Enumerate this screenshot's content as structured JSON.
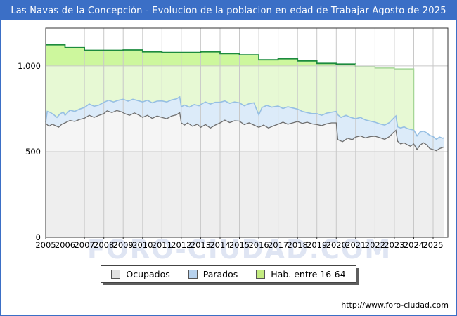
{
  "frame": {
    "title": "Las Navas de la Concepción - Evolucion de la poblacion en edad de Trabajar Agosto de 2025",
    "watermark": "FORO-CIUDAD.COM",
    "footer_url": "http://www.foro-ciudad.com"
  },
  "colors": {
    "accent_blue": "#3b6fc6",
    "plot_border": "#333333",
    "grid": "#c8c8c8",
    "tick": "#333333",
    "axis_text": "#000000",
    "ocupados_line": "#6f6f6f",
    "ocupados_fill_upper": "#f5f5f5",
    "ocupados_fill_lower": "#eeeeee",
    "parados_line": "#96bfe3",
    "parados_fill": "#dcebf9",
    "hab_line_dark": "#1d8b3e",
    "hab_line_pale": "#a5d696",
    "hab_fill_upper": "#cdf79d",
    "hab_fill_lower": "#e7f9d4",
    "legend_swatch_ocupados": "#e2e2e2",
    "legend_swatch_parados": "#b7d2ee",
    "legend_swatch_hab": "#c3eb80",
    "watermark_color": "#dfe5f3"
  },
  "chart_data": {
    "type": "area",
    "stacked": true,
    "title": "Las Navas de la Concepción - Evolucion de la poblacion en edad de Trabajar Agosto de 2025",
    "subtitle_period": "2005 - Agosto de 2025",
    "x_axis": {
      "label": "",
      "ticks": [
        "2005",
        "2006",
        "2007",
        "2008",
        "2009",
        "2010",
        "2011",
        "2012",
        "2013",
        "2014",
        "2015",
        "2016",
        "2017",
        "2018",
        "2019",
        "2020",
        "2021",
        "2022",
        "2023",
        "2024",
        "2025"
      ],
      "range": [
        2005,
        2025.76
      ],
      "resolution": "monthly"
    },
    "y_axis": {
      "label": "",
      "ticks": [
        "0",
        "500",
        "1.000"
      ],
      "tick_values": [
        0,
        500,
        1000
      ],
      "range": [
        0,
        1221
      ],
      "gridlines": [
        500,
        1000
      ]
    },
    "legend": {
      "position": "bottom",
      "items": [
        {
          "label": "Ocupados",
          "swatch": "legend_swatch_ocupados"
        },
        {
          "label": "Parados",
          "swatch": "legend_swatch_parados"
        },
        {
          "label": "Hab. entre 16-64",
          "swatch": "legend_swatch_hab"
        }
      ]
    },
    "series": [
      {
        "name": "Ocupados",
        "role": "stack-base boundary line (employed)",
        "points": [
          [
            2005.0,
            665
          ],
          [
            2005.17,
            648
          ],
          [
            2005.33,
            660
          ],
          [
            2005.5,
            652
          ],
          [
            2005.67,
            643
          ],
          [
            2005.83,
            660
          ],
          [
            2006.0,
            668
          ],
          [
            2006.25,
            682
          ],
          [
            2006.5,
            676
          ],
          [
            2006.75,
            688
          ],
          [
            2007.0,
            695
          ],
          [
            2007.25,
            712
          ],
          [
            2007.5,
            700
          ],
          [
            2007.75,
            712
          ],
          [
            2008.0,
            722
          ],
          [
            2008.17,
            738
          ],
          [
            2008.42,
            728
          ],
          [
            2008.67,
            740
          ],
          [
            2008.92,
            732
          ],
          [
            2009.08,
            722
          ],
          [
            2009.33,
            712
          ],
          [
            2009.58,
            726
          ],
          [
            2009.83,
            712
          ],
          [
            2010.0,
            700
          ],
          [
            2010.25,
            712
          ],
          [
            2010.5,
            694
          ],
          [
            2010.75,
            708
          ],
          [
            2011.0,
            700
          ],
          [
            2011.25,
            692
          ],
          [
            2011.5,
            708
          ],
          [
            2011.75,
            715
          ],
          [
            2011.92,
            728
          ],
          [
            2012.0,
            668
          ],
          [
            2012.17,
            655
          ],
          [
            2012.33,
            668
          ],
          [
            2012.58,
            648
          ],
          [
            2012.83,
            660
          ],
          [
            2013.0,
            642
          ],
          [
            2013.25,
            658
          ],
          [
            2013.5,
            638
          ],
          [
            2013.75,
            655
          ],
          [
            2014.0,
            668
          ],
          [
            2014.25,
            684
          ],
          [
            2014.5,
            670
          ],
          [
            2014.75,
            680
          ],
          [
            2015.0,
            678
          ],
          [
            2015.25,
            658
          ],
          [
            2015.5,
            668
          ],
          [
            2015.75,
            655
          ],
          [
            2016.0,
            642
          ],
          [
            2016.25,
            655
          ],
          [
            2016.5,
            638
          ],
          [
            2016.75,
            650
          ],
          [
            2017.0,
            660
          ],
          [
            2017.25,
            672
          ],
          [
            2017.5,
            660
          ],
          [
            2017.75,
            668
          ],
          [
            2018.0,
            676
          ],
          [
            2018.25,
            665
          ],
          [
            2018.5,
            672
          ],
          [
            2018.75,
            662
          ],
          [
            2019.0,
            658
          ],
          [
            2019.25,
            652
          ],
          [
            2019.5,
            662
          ],
          [
            2019.75,
            668
          ],
          [
            2020.0,
            668
          ],
          [
            2020.08,
            570
          ],
          [
            2020.33,
            558
          ],
          [
            2020.58,
            578
          ],
          [
            2020.83,
            570
          ],
          [
            2021.0,
            585
          ],
          [
            2021.25,
            592
          ],
          [
            2021.5,
            580
          ],
          [
            2021.75,
            588
          ],
          [
            2022.0,
            590
          ],
          [
            2022.25,
            582
          ],
          [
            2022.5,
            572
          ],
          [
            2022.75,
            588
          ],
          [
            2022.92,
            608
          ],
          [
            2023.08,
            625
          ],
          [
            2023.17,
            560
          ],
          [
            2023.33,
            545
          ],
          [
            2023.5,
            552
          ],
          [
            2023.67,
            540
          ],
          [
            2023.83,
            532
          ],
          [
            2024.0,
            545
          ],
          [
            2024.17,
            512
          ],
          [
            2024.33,
            538
          ],
          [
            2024.5,
            552
          ],
          [
            2024.67,
            540
          ],
          [
            2024.83,
            518
          ],
          [
            2025.0,
            512
          ],
          [
            2025.17,
            505
          ],
          [
            2025.33,
            518
          ],
          [
            2025.5,
            525
          ],
          [
            2025.58,
            528
          ]
        ]
      },
      {
        "name": "Parados",
        "role": "stack-top boundary line (Ocupados + Parados)",
        "points": [
          [
            2005.0,
            672
          ],
          [
            2005.08,
            735
          ],
          [
            2005.25,
            728
          ],
          [
            2005.42,
            715
          ],
          [
            2005.58,
            700
          ],
          [
            2005.75,
            722
          ],
          [
            2005.92,
            730
          ],
          [
            2006.0,
            712
          ],
          [
            2006.25,
            742
          ],
          [
            2006.5,
            735
          ],
          [
            2006.75,
            748
          ],
          [
            2007.0,
            758
          ],
          [
            2007.25,
            778
          ],
          [
            2007.5,
            765
          ],
          [
            2007.75,
            772
          ],
          [
            2008.0,
            788
          ],
          [
            2008.25,
            800
          ],
          [
            2008.5,
            790
          ],
          [
            2008.75,
            800
          ],
          [
            2009.0,
            806
          ],
          [
            2009.25,
            795
          ],
          [
            2009.5,
            806
          ],
          [
            2009.75,
            798
          ],
          [
            2010.0,
            790
          ],
          [
            2010.25,
            800
          ],
          [
            2010.5,
            785
          ],
          [
            2010.75,
            795
          ],
          [
            2011.0,
            796
          ],
          [
            2011.25,
            790
          ],
          [
            2011.5,
            802
          ],
          [
            2011.75,
            808
          ],
          [
            2011.92,
            820
          ],
          [
            2012.0,
            762
          ],
          [
            2012.17,
            772
          ],
          [
            2012.42,
            760
          ],
          [
            2012.67,
            775
          ],
          [
            2012.92,
            768
          ],
          [
            2013.0,
            775
          ],
          [
            2013.25,
            790
          ],
          [
            2013.5,
            778
          ],
          [
            2013.75,
            788
          ],
          [
            2014.0,
            788
          ],
          [
            2014.25,
            796
          ],
          [
            2014.5,
            782
          ],
          [
            2014.75,
            790
          ],
          [
            2015.0,
            785
          ],
          [
            2015.25,
            768
          ],
          [
            2015.5,
            780
          ],
          [
            2015.75,
            785
          ],
          [
            2016.0,
            714
          ],
          [
            2016.17,
            758
          ],
          [
            2016.42,
            770
          ],
          [
            2016.67,
            760
          ],
          [
            2017.0,
            766
          ],
          [
            2017.25,
            752
          ],
          [
            2017.5,
            762
          ],
          [
            2017.75,
            755
          ],
          [
            2018.0,
            748
          ],
          [
            2018.25,
            735
          ],
          [
            2018.5,
            728
          ],
          [
            2018.75,
            722
          ],
          [
            2019.0,
            722
          ],
          [
            2019.25,
            712
          ],
          [
            2019.5,
            725
          ],
          [
            2019.75,
            730
          ],
          [
            2020.0,
            735
          ],
          [
            2020.08,
            715
          ],
          [
            2020.25,
            700
          ],
          [
            2020.5,
            712
          ],
          [
            2020.75,
            700
          ],
          [
            2021.0,
            692
          ],
          [
            2021.25,
            700
          ],
          [
            2021.5,
            685
          ],
          [
            2021.75,
            678
          ],
          [
            2022.0,
            672
          ],
          [
            2022.25,
            662
          ],
          [
            2022.5,
            655
          ],
          [
            2022.75,
            670
          ],
          [
            2022.92,
            690
          ],
          [
            2023.08,
            708
          ],
          [
            2023.17,
            645
          ],
          [
            2023.33,
            638
          ],
          [
            2023.5,
            645
          ],
          [
            2023.67,
            635
          ],
          [
            2023.83,
            630
          ],
          [
            2024.0,
            627
          ],
          [
            2024.17,
            592
          ],
          [
            2024.33,
            615
          ],
          [
            2024.5,
            620
          ],
          [
            2024.67,
            610
          ],
          [
            2024.83,
            595
          ],
          [
            2025.0,
            588
          ],
          [
            2025.17,
            572
          ],
          [
            2025.33,
            585
          ],
          [
            2025.5,
            578
          ],
          [
            2025.58,
            582
          ]
        ]
      },
      {
        "name": "Hab. entre 16-64",
        "role": "total working-age population, annual steps",
        "step_points": [
          [
            2005,
            1124
          ],
          [
            2006,
            1107
          ],
          [
            2007,
            1092
          ],
          [
            2008,
            1092
          ],
          [
            2009,
            1094
          ],
          [
            2010,
            1083
          ],
          [
            2011,
            1079
          ],
          [
            2012,
            1079
          ],
          [
            2013,
            1083
          ],
          [
            2014,
            1072
          ],
          [
            2015,
            1065
          ],
          [
            2016,
            1036
          ],
          [
            2017,
            1042
          ],
          [
            2018,
            1029
          ],
          [
            2019,
            1015
          ],
          [
            2020,
            1011
          ],
          [
            2021,
            995
          ],
          [
            2022,
            988
          ],
          [
            2023,
            983
          ]
        ],
        "ends_at": 2024.0,
        "dark_stroke_until": 2021
      }
    ]
  }
}
